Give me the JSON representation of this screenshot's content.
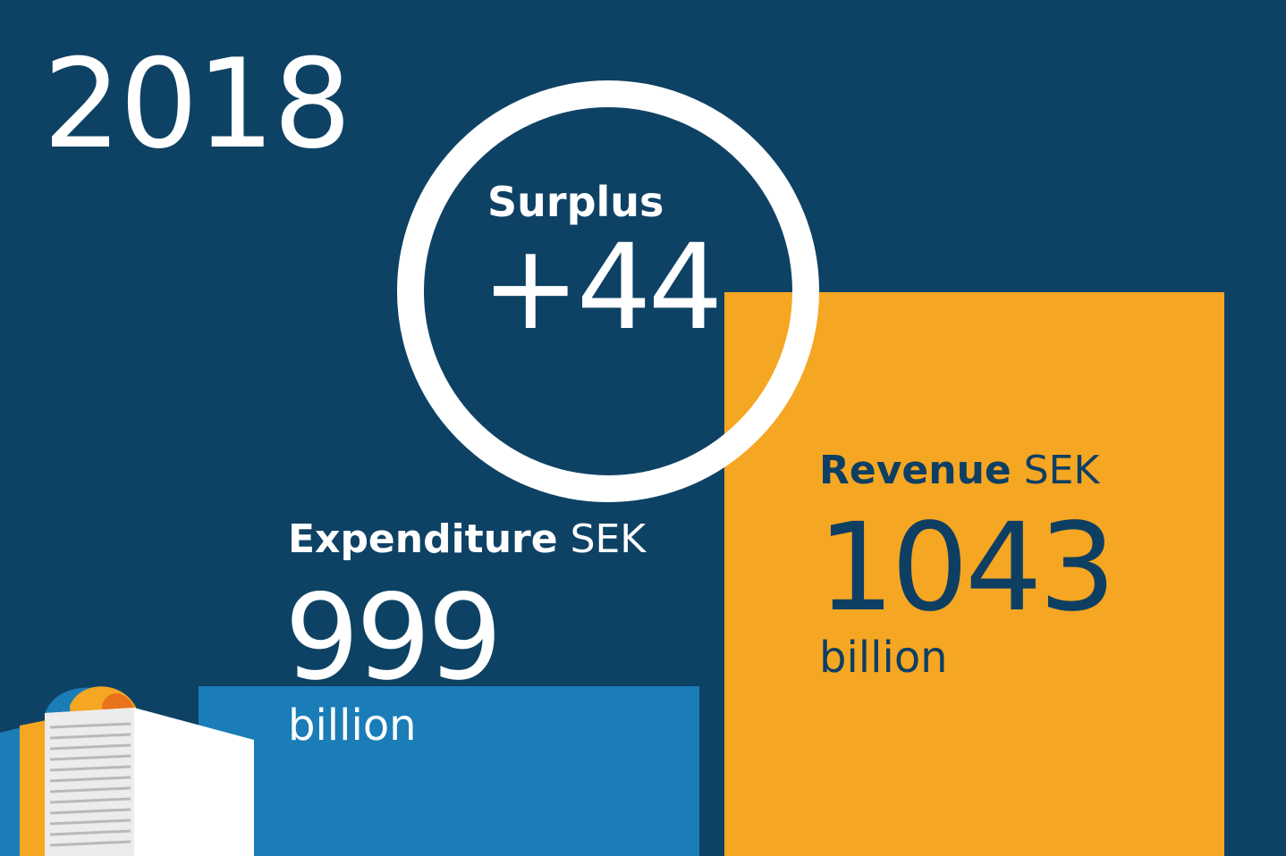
{
  "colors": {
    "background": "#0e4264",
    "expenditure": "#1a7db8",
    "revenue": "#f5a623",
    "text_light": "#ffffff",
    "text_dark": "#0e3f63"
  },
  "year": "2018",
  "surplus": {
    "label": "Surplus",
    "value": "+44"
  },
  "chart_data": {
    "type": "bar",
    "categories": [
      "Expenditure",
      "Revenue"
    ],
    "values": [
      999,
      1043
    ],
    "unit": "SEK billion",
    "xlabel": "",
    "ylabel": ""
  },
  "expenditure": {
    "label": "Expenditure",
    "currency": "SEK",
    "value": "999",
    "unit": "billion"
  },
  "revenue": {
    "label": "Revenue",
    "currency": "SEK",
    "value": "1043",
    "unit": "billion"
  },
  "illustration": {
    "icon": "book-icon"
  }
}
